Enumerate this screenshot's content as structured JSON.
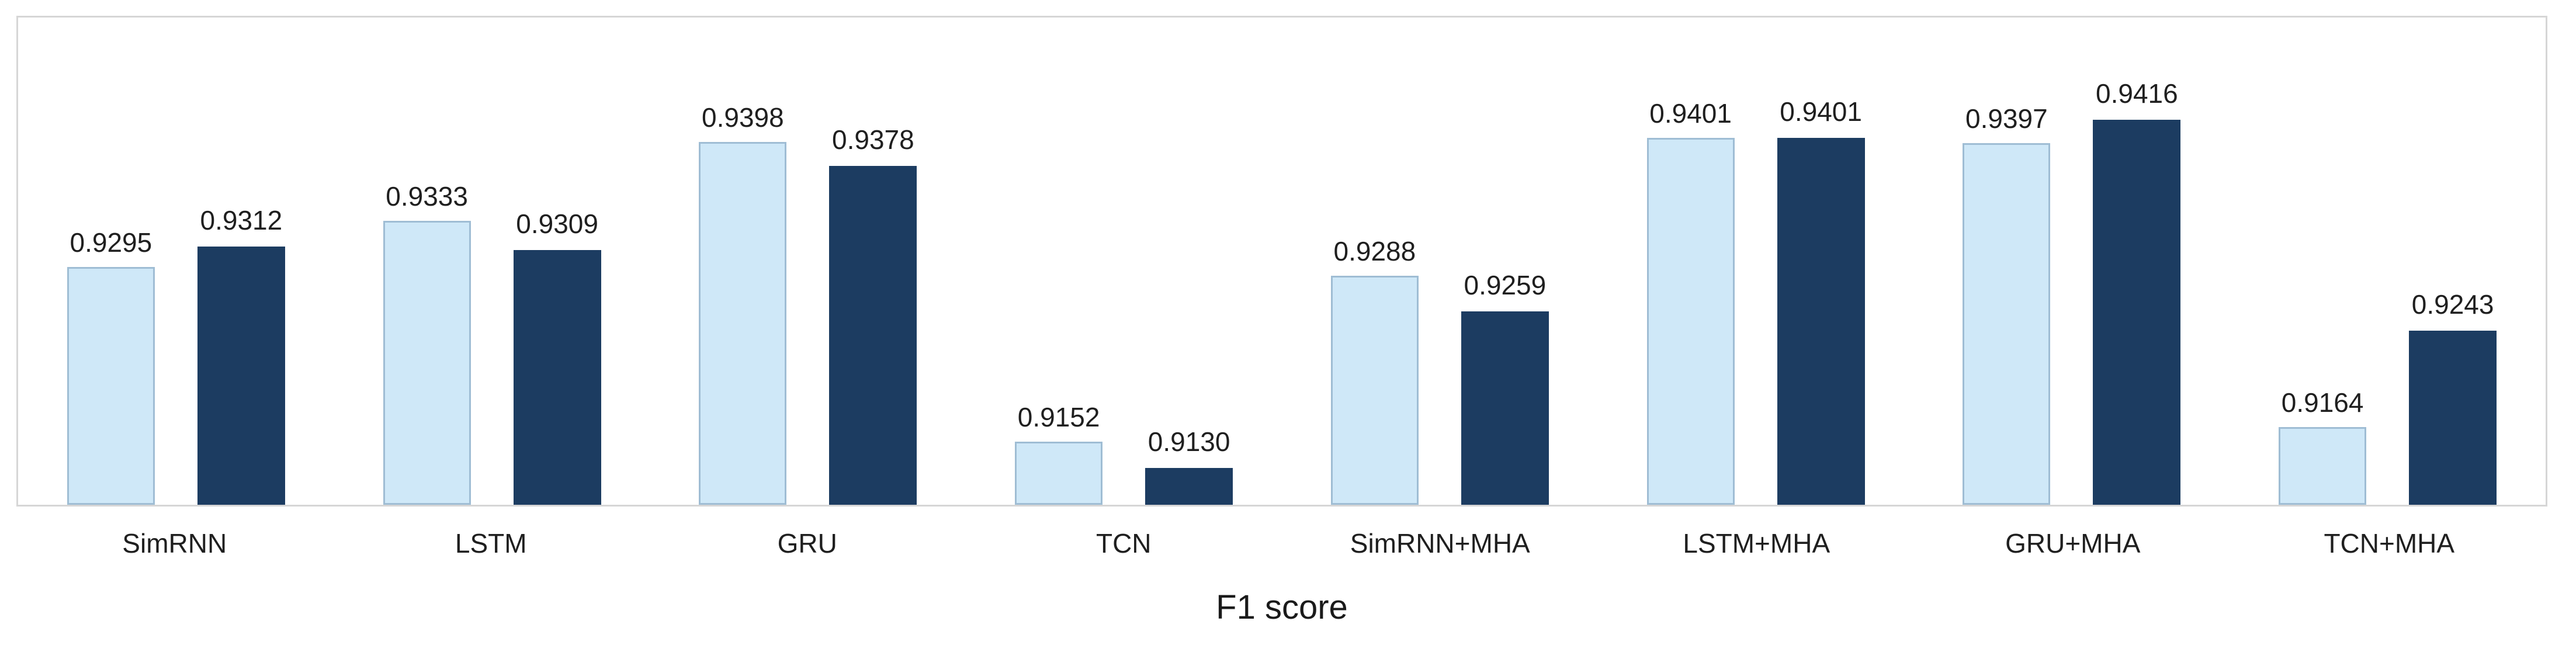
{
  "figure": {
    "background": "#ffffff",
    "frame_border_color": "#d6d6d6"
  },
  "chart_data": {
    "type": "bar",
    "title": "",
    "xlabel": "F1 score",
    "ylabel": "",
    "categories": [
      "SimRNN",
      "LSTM",
      "GRU",
      "TCN",
      "SimRNN+MHA",
      "LSTM+MHA",
      "GRU+MHA",
      "TCN+MHA"
    ],
    "series": [
      {
        "name": "light-blue-series",
        "color": "#cfe8f8",
        "border_color": "#9fbdd4",
        "values": [
          0.9295,
          0.9333,
          0.9398,
          0.9152,
          0.9288,
          0.9401,
          0.9397,
          0.9164
        ]
      },
      {
        "name": "dark-navy-series",
        "color": "#1c3c61",
        "border_color": "#1c3c61",
        "values": [
          0.9312,
          0.9309,
          0.9378,
          0.913,
          0.9259,
          0.9401,
          0.9416,
          0.9243
        ]
      }
    ],
    "ylim": [
      0.91,
      0.95
    ],
    "grid": false,
    "legend_position": "none",
    "value_labels": true,
    "value_label_decimals": 4
  }
}
